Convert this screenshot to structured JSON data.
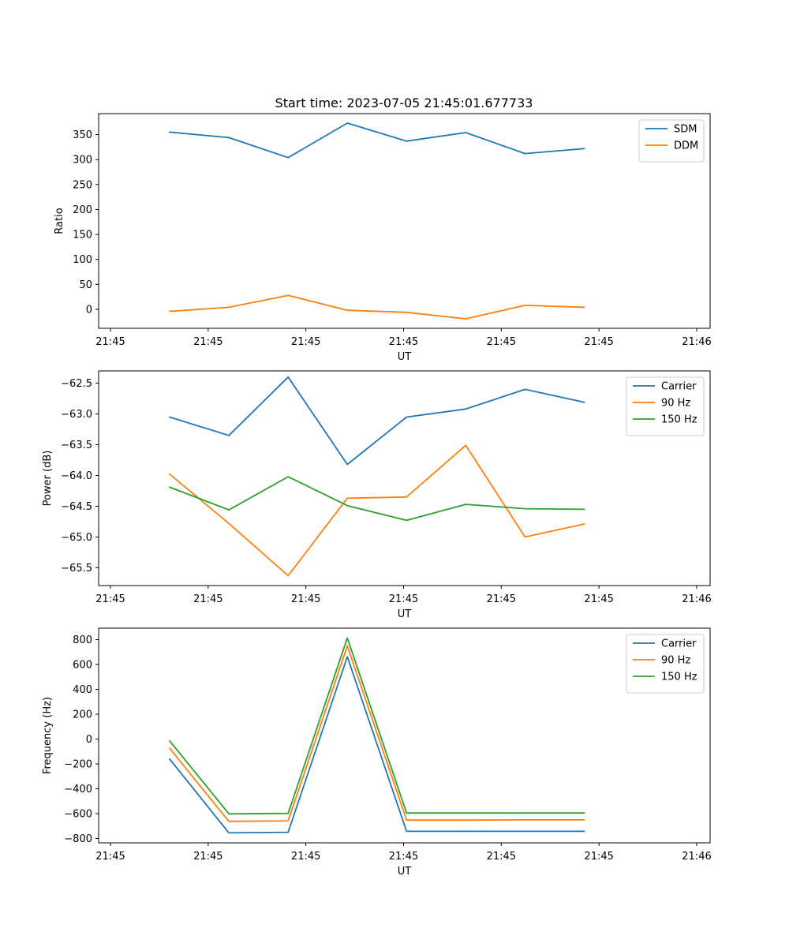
{
  "figure_title": "Start time: 2023-07-05 21:45:01.677733",
  "colors": {
    "blue": "#1f77b4",
    "orange": "#ff7f0e",
    "green": "#2ca02c"
  },
  "chart_data": [
    {
      "type": "line",
      "title": "Start time: 2023-07-05 21:45:01.677733",
      "xlabel": "UT",
      "ylabel": "Ratio",
      "x_tick_labels": [
        "21:45",
        "21:45",
        "21:45",
        "21:45",
        "21:45",
        "21:45",
        "21:46"
      ],
      "x": [
        1,
        2,
        3,
        4,
        5,
        6,
        7,
        8
      ],
      "xlim": [
        0,
        9.9
      ],
      "x_tick_positions": [
        0,
        1.65,
        3.3,
        4.95,
        6.6,
        8.25,
        9.9
      ],
      "ylim": [
        -38,
        392
      ],
      "yticks": [
        0,
        50,
        100,
        150,
        200,
        250,
        300,
        350
      ],
      "ytick_labels": [
        "0",
        "50",
        "100",
        "150",
        "200",
        "250",
        "300",
        "350"
      ],
      "legend": "top-right",
      "series": [
        {
          "name": "SDM",
          "color": "#1f77b4",
          "values": [
            355,
            344,
            304,
            373,
            337,
            354,
            312,
            322
          ]
        },
        {
          "name": "DDM",
          "color": "#ff7f0e",
          "values": [
            -4,
            4,
            28,
            -2,
            -6,
            -19,
            8,
            4
          ]
        }
      ]
    },
    {
      "type": "line",
      "xlabel": "UT",
      "ylabel": "Power (dB)",
      "x_tick_labels": [
        "21:45",
        "21:45",
        "21:45",
        "21:45",
        "21:45",
        "21:45",
        "21:46"
      ],
      "x": [
        1,
        2,
        3,
        4,
        5,
        6,
        7,
        8
      ],
      "xlim": [
        0,
        9.9
      ],
      "x_tick_positions": [
        0,
        1.65,
        3.3,
        4.95,
        6.6,
        8.25,
        9.9
      ],
      "ylim": [
        -65.79,
        -62.3
      ],
      "yticks": [
        -65.5,
        -65.0,
        -64.5,
        -64.0,
        -63.5,
        -63.0,
        -62.5
      ],
      "ytick_labels": [
        "−65.5",
        "−65.0",
        "−64.5",
        "−64.0",
        "−63.5",
        "−63.0",
        "−62.5"
      ],
      "legend": "top-right",
      "series": [
        {
          "name": "Carrier",
          "color": "#1f77b4",
          "values": [
            -63.05,
            -63.35,
            -62.4,
            -63.82,
            -63.05,
            -62.92,
            -62.6,
            -62.81
          ]
        },
        {
          "name": "90 Hz",
          "color": "#ff7f0e",
          "values": [
            -63.98,
            -64.78,
            -65.63,
            -64.37,
            -64.35,
            -63.51,
            -65.0,
            -64.79
          ]
        },
        {
          "name": "150 Hz",
          "color": "#2ca02c",
          "values": [
            -64.19,
            -64.56,
            -64.02,
            -64.49,
            -64.73,
            -64.47,
            -64.54,
            -64.55
          ]
        }
      ]
    },
    {
      "type": "line",
      "xlabel": "UT",
      "ylabel": "Frequency (Hz)",
      "x_tick_labels": [
        "21:45",
        "21:45",
        "21:45",
        "21:45",
        "21:45",
        "21:45",
        "21:46"
      ],
      "x": [
        1,
        2,
        3,
        4,
        5,
        6,
        7,
        8
      ],
      "xlim": [
        0,
        9.9
      ],
      "x_tick_positions": [
        0,
        1.65,
        3.3,
        4.95,
        6.6,
        8.25,
        9.9
      ],
      "ylim": [
        -835,
        892
      ],
      "yticks": [
        -800,
        -600,
        -400,
        -200,
        0,
        200,
        400,
        600,
        800
      ],
      "ytick_labels": [
        "−800",
        "−600",
        "−400",
        "−200",
        "0",
        "200",
        "400",
        "600",
        "800"
      ],
      "legend": "top-right",
      "series": [
        {
          "name": "Carrier",
          "color": "#1f77b4",
          "values": [
            -162,
            -755,
            -750,
            663,
            -742,
            -742,
            -742,
            -742
          ]
        },
        {
          "name": "90 Hz",
          "color": "#ff7f0e",
          "values": [
            -75,
            -662,
            -658,
            750,
            -652,
            -652,
            -650,
            -650
          ]
        },
        {
          "name": "150 Hz",
          "color": "#2ca02c",
          "values": [
            -15,
            -602,
            -598,
            813,
            -595,
            -595,
            -595,
            -595
          ]
        }
      ]
    }
  ]
}
